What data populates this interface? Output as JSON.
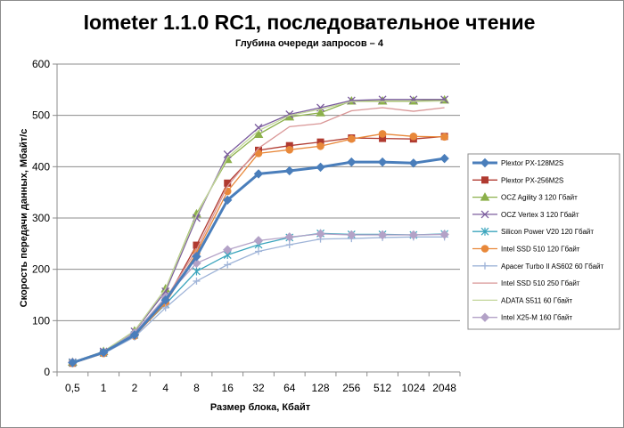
{
  "chart_data": {
    "type": "line",
    "title": "Iometer 1.1.0 RC1, последовательное чтение",
    "subtitle": "Глубина очереди запросов – 4",
    "xlabel": "Размер блока, Кбайт",
    "ylabel": "Скорость передачи данных, Мбайт/с",
    "categories": [
      "0,5",
      "1",
      "2",
      "4",
      "8",
      "16",
      "32",
      "64",
      "128",
      "256",
      "512",
      "1024",
      "2048"
    ],
    "ylim": [
      0,
      600
    ],
    "yticks": [
      "0",
      "100",
      "200",
      "300",
      "400",
      "500",
      "600"
    ],
    "grid": "horizontal",
    "legend_position": "right",
    "series": [
      {
        "name": "Plextor PX-128M2S",
        "color": "#4a7ebb",
        "marker": "diamond",
        "values": [
          18,
          38,
          72,
          140,
          225,
          335,
          386,
          392,
          399,
          409,
          409,
          407,
          416
        ]
      },
      {
        "name": "Plextor PX-256M2S",
        "color": "#b03a30",
        "marker": "square",
        "values": [
          17,
          37,
          72,
          138,
          247,
          368,
          432,
          441,
          448,
          456,
          455,
          454,
          459
        ]
      },
      {
        "name": "OCZ Agility  3 120 Гбайт",
        "color": "#8cb04b",
        "marker": "triangle",
        "values": [
          19,
          40,
          80,
          162,
          308,
          414,
          463,
          497,
          505,
          528,
          528,
          528,
          530
        ]
      },
      {
        "name": "OCZ Vertex  3 120 Гбайт",
        "color": "#7b5c9e",
        "marker": "x",
        "values": [
          19,
          40,
          79,
          157,
          300,
          424,
          476,
          502,
          515,
          529,
          531,
          531,
          531
        ]
      },
      {
        "name": "Silicon Power  V20 120 Гбайт",
        "color": "#3ba5bd",
        "marker": "star",
        "values": [
          18,
          37,
          72,
          132,
          196,
          228,
          248,
          262,
          270,
          268,
          268,
          267,
          269
        ]
      },
      {
        "name": "Intel  SSD 510 120 Гбайт",
        "color": "#e8883a",
        "marker": "circle",
        "values": [
          17,
          36,
          70,
          134,
          232,
          352,
          426,
          433,
          440,
          454,
          464,
          459,
          458
        ]
      },
      {
        "name": "Apacer Turbo II AS602 60 Гбайт",
        "color": "#9fb4d8",
        "marker": "plus",
        "values": [
          18,
          36,
          68,
          125,
          177,
          209,
          235,
          248,
          259,
          260,
          262,
          263,
          263
        ]
      },
      {
        "name": "Intel  SSD 510 250 Гбайт",
        "color": "#d99696",
        "marker": "none",
        "values": [
          18,
          38,
          74,
          142,
          238,
          362,
          436,
          478,
          484,
          509,
          515,
          508,
          515
        ]
      },
      {
        "name": "ADATA  S511 60 Гбайт",
        "color": "#c3d69b",
        "marker": "none",
        "values": [
          19,
          40,
          80,
          162,
          305,
          418,
          470,
          500,
          512,
          527,
          527,
          527,
          528
        ]
      },
      {
        "name": "Intel  X25-M 160 Гбайт",
        "color": "#b3a2c7",
        "marker": "diamond",
        "values": [
          19,
          38,
          76,
          146,
          212,
          238,
          256,
          263,
          269,
          267,
          267,
          267,
          268
        ]
      }
    ]
  }
}
